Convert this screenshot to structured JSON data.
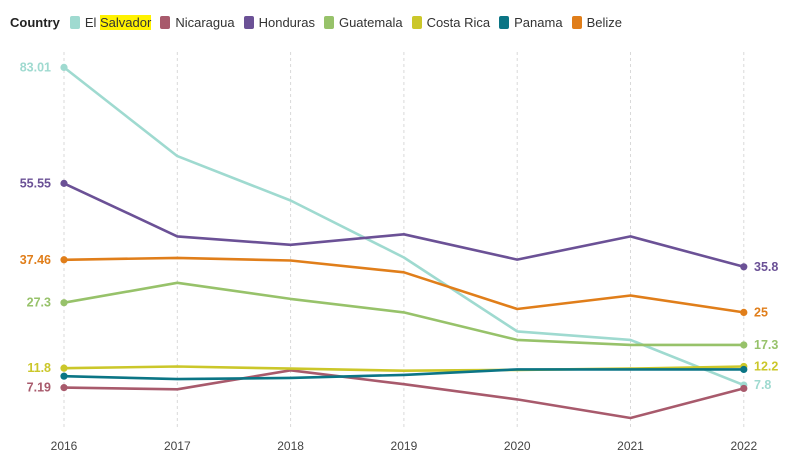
{
  "legend": {
    "title": "Country",
    "items": [
      {
        "pre": "El ",
        "hl": "Salvador",
        "color": "#9fdad0"
      },
      {
        "pre": "Nicaragua",
        "hl": "",
        "color": "#a85a6c"
      },
      {
        "pre": "Honduras",
        "hl": "",
        "color": "#6b5196"
      },
      {
        "pre": "Guatemala",
        "hl": "",
        "color": "#97c26a"
      },
      {
        "pre": "Costa Rica",
        "hl": "",
        "color": "#cbc72a"
      },
      {
        "pre": "Panama",
        "hl": "",
        "color": "#0b7585"
      },
      {
        "pre": "Belize",
        "hl": "",
        "color": "#e07e1a"
      }
    ]
  },
  "chart_data": {
    "type": "line",
    "title": "",
    "xlabel": "",
    "ylabel": "",
    "x": [
      "2016",
      "2017",
      "2018",
      "2019",
      "2020",
      "2021",
      "2022"
    ],
    "ylim": [
      0,
      85
    ],
    "grid": "vertical dashed",
    "legend_position": "top",
    "series": [
      {
        "name": "El Salvador",
        "color": "#9fdad0",
        "values": [
          83.01,
          62,
          51.5,
          38,
          20.5,
          18.5,
          7.8
        ],
        "start_label": "83.01",
        "end_label": "7.8"
      },
      {
        "name": "Nicaragua",
        "color": "#a85a6c",
        "values": [
          7.19,
          6.8,
          11.3,
          8,
          4.4,
          0,
          7.0
        ],
        "start_label": "7.19",
        "end_label": ""
      },
      {
        "name": "Honduras",
        "color": "#6b5196",
        "values": [
          55.55,
          43,
          41,
          43.5,
          37.5,
          43,
          35.8
        ],
        "start_label": "55.55",
        "end_label": "35.8"
      },
      {
        "name": "Guatemala",
        "color": "#97c26a",
        "values": [
          27.3,
          32,
          28.2,
          25,
          18.5,
          17.3,
          17.3
        ],
        "start_label": "27.3",
        "end_label": "17.3"
      },
      {
        "name": "Costa Rica",
        "color": "#cbc72a",
        "values": [
          11.8,
          12.2,
          11.7,
          11.2,
          11.4,
          11.7,
          12.2
        ],
        "start_label": "11.8",
        "end_label": "12.2"
      },
      {
        "name": "Panama",
        "color": "#0b7585",
        "values": [
          9.9,
          9.2,
          9.5,
          10.2,
          11.5,
          11.5,
          11.5
        ],
        "start_label": "",
        "end_label": ""
      },
      {
        "name": "Belize",
        "color": "#e07e1a",
        "values": [
          37.46,
          37.9,
          37.3,
          34.5,
          25.8,
          29.0,
          25
        ],
        "start_label": "37.46",
        "end_label": "25"
      }
    ]
  }
}
